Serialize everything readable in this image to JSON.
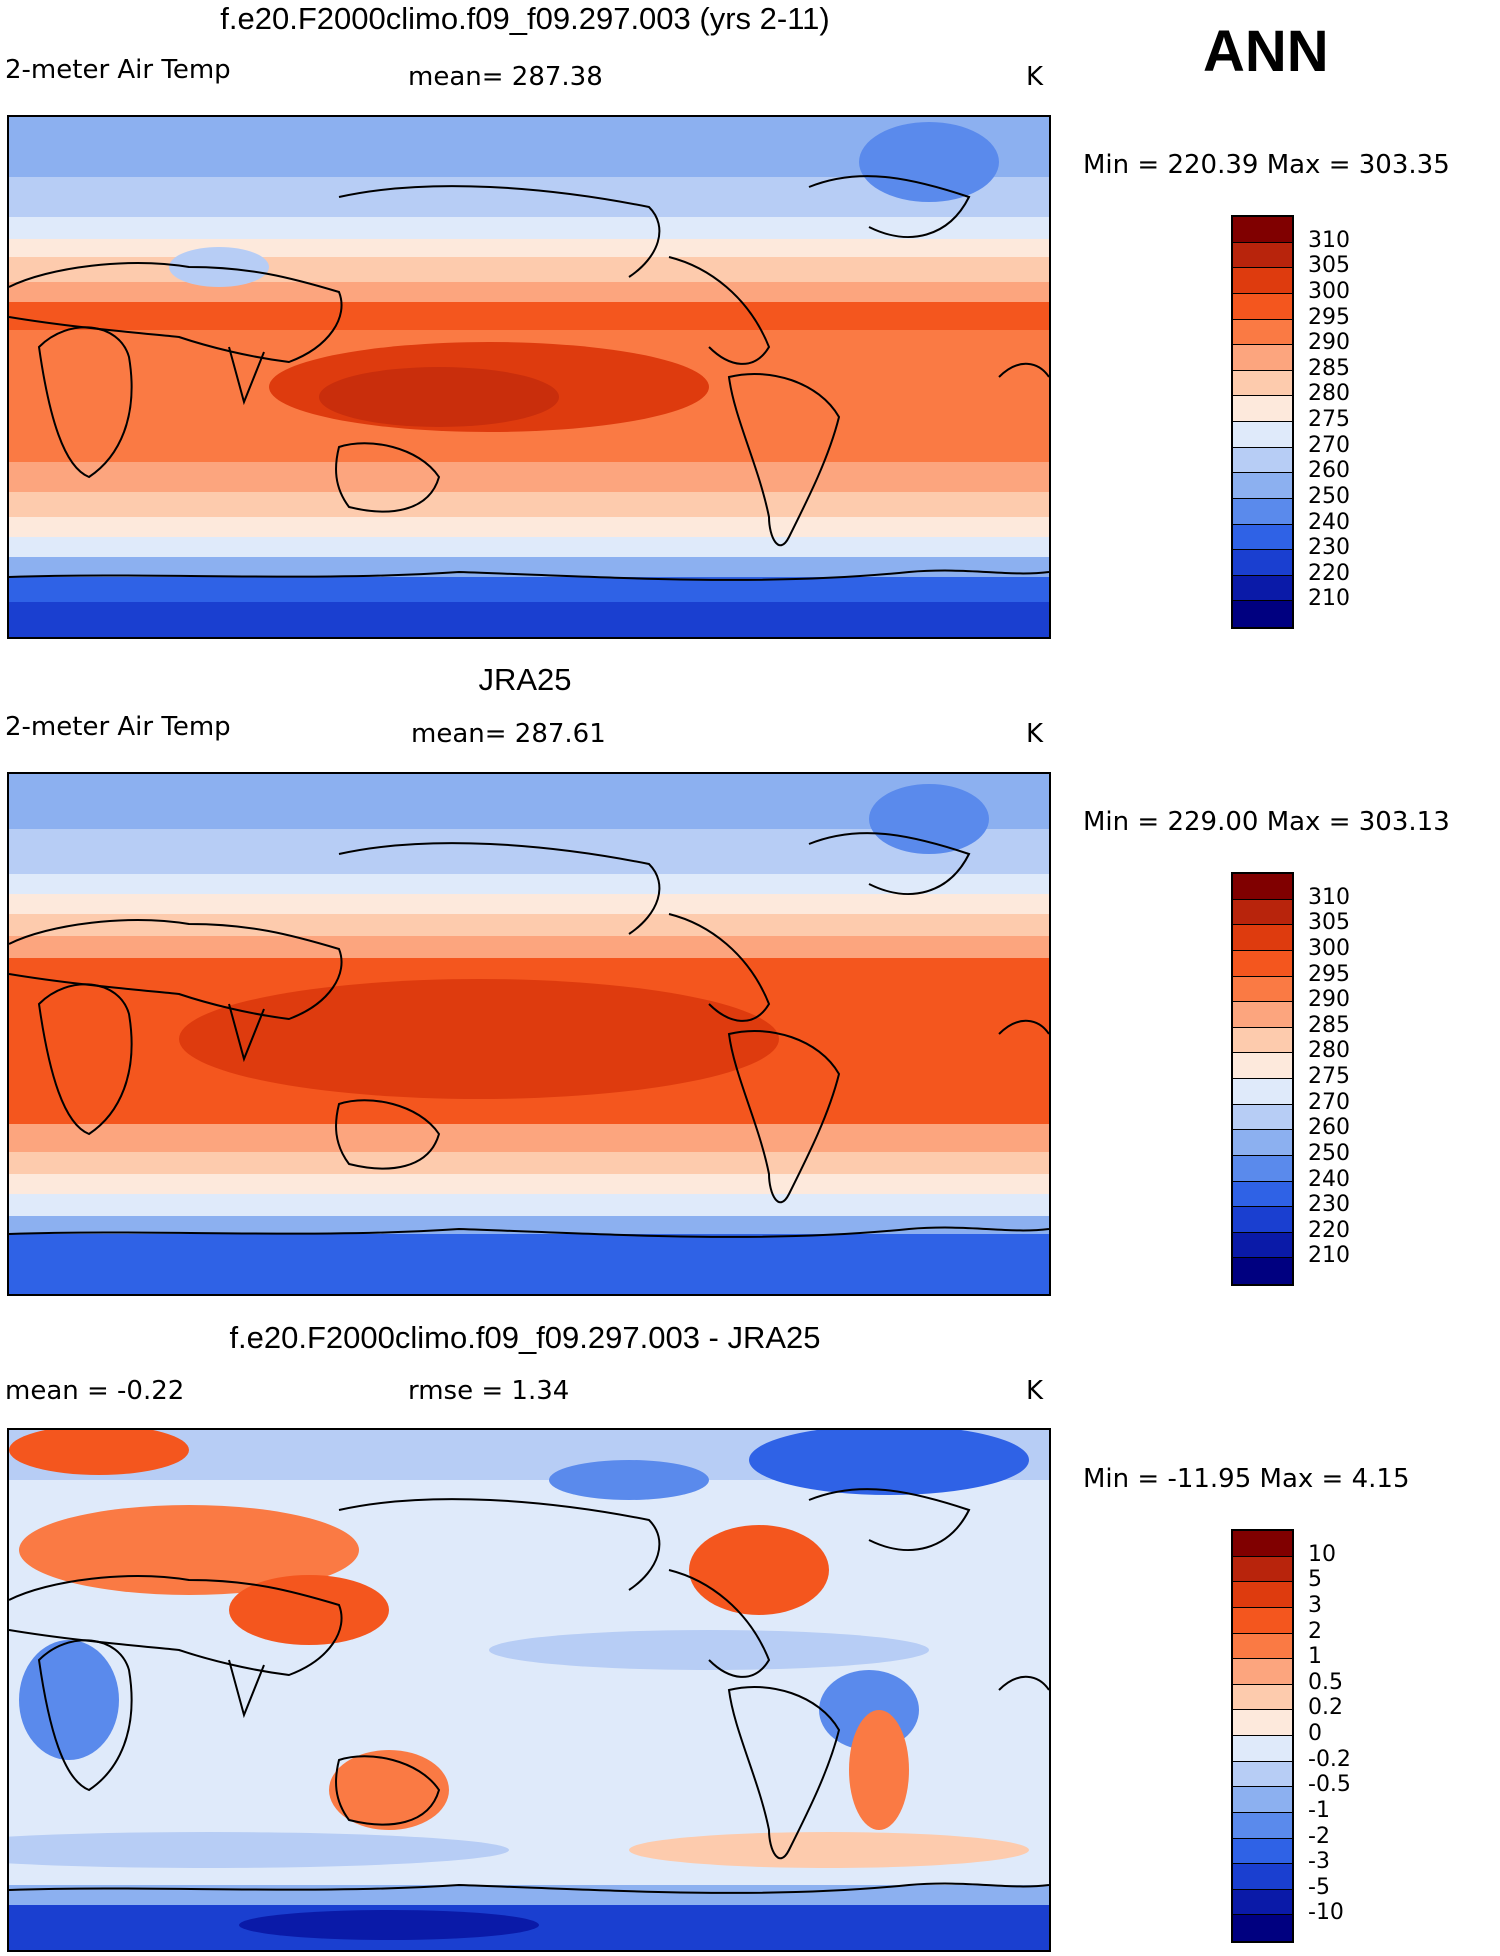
{
  "season": "ANN",
  "panels": [
    {
      "title": "f.e20.F2000climo.f09_f09.297.003 (yrs 2-11)",
      "left": "2-meter Air Temp",
      "center": "mean= 287.38",
      "right": "K",
      "minmax": "Min = 220.39 Max = 303.35",
      "colorbar_labels": [
        "310",
        "305",
        "300",
        "295",
        "290",
        "285",
        "280",
        "275",
        "270",
        "260",
        "250",
        "240",
        "230",
        "220",
        "210"
      ],
      "colorbar_colors": [
        "#800000",
        "#b8240c",
        "#de3b0e",
        "#f4561e",
        "#fa7a44",
        "#fca57e",
        "#fdcbad",
        "#fde9dc",
        "#dfeafa",
        "#b7cdf5",
        "#8cb0f0",
        "#5a8aec",
        "#2f62e6",
        "#1a3fd0",
        "#0a1aa8",
        "#000080"
      ]
    },
    {
      "title": "JRA25",
      "left": "2-meter Air Temp",
      "center": "mean= 287.61",
      "right": "K",
      "minmax": "Min = 229.00 Max = 303.13",
      "colorbar_labels": [
        "310",
        "305",
        "300",
        "295",
        "290",
        "285",
        "280",
        "275",
        "270",
        "260",
        "250",
        "240",
        "230",
        "220",
        "210"
      ],
      "colorbar_colors": [
        "#800000",
        "#b8240c",
        "#de3b0e",
        "#f4561e",
        "#fa7a44",
        "#fca57e",
        "#fdcbad",
        "#fde9dc",
        "#dfeafa",
        "#b7cdf5",
        "#8cb0f0",
        "#5a8aec",
        "#2f62e6",
        "#1a3fd0",
        "#0a1aa8",
        "#000080"
      ]
    },
    {
      "title": "f.e20.F2000climo.f09_f09.297.003 - JRA25",
      "left": "mean =   -0.22",
      "center": "rmse =    1.34",
      "right": "K",
      "minmax": "Min = -11.95 Max =    4.15",
      "colorbar_labels": [
        "10",
        "5",
        "3",
        "2",
        "1",
        "0.5",
        "0.2",
        "0",
        "-0.2",
        "-0.5",
        "-1",
        "-2",
        "-3",
        "-5",
        "-10"
      ],
      "colorbar_colors": [
        "#800000",
        "#b8240c",
        "#de3b0e",
        "#f4561e",
        "#fa7a44",
        "#fca57e",
        "#fdcbad",
        "#fde9dc",
        "#dfeafa",
        "#b7cdf5",
        "#8cb0f0",
        "#5a8aec",
        "#2f62e6",
        "#1a3fd0",
        "#0a1aa8",
        "#000080"
      ]
    }
  ]
}
